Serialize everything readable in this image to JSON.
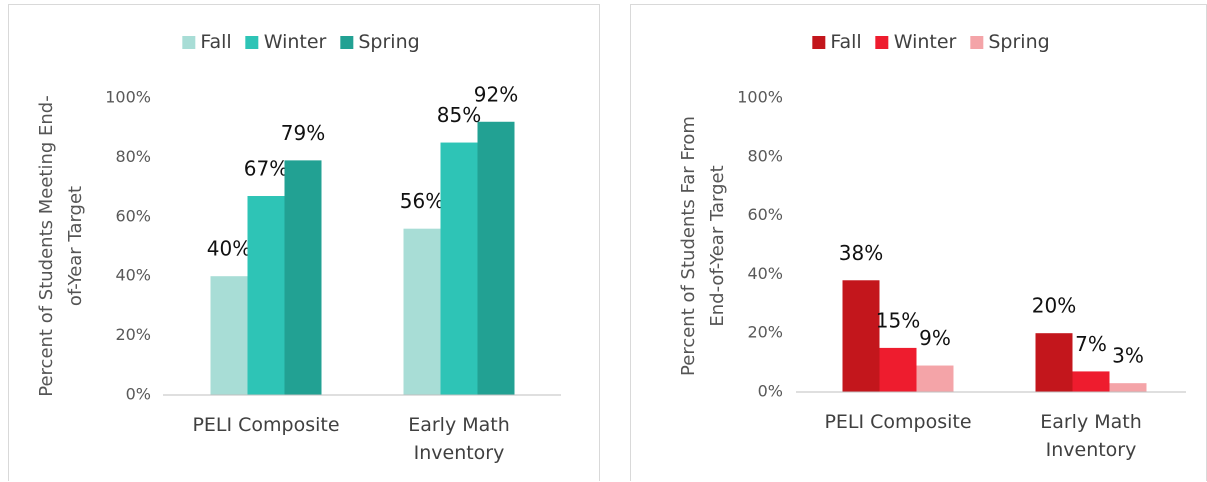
{
  "chart_data": [
    {
      "type": "bar",
      "y_axis_label": "Percent of Students Meeting End-of-Year Target",
      "categories": [
        "PELI Composite",
        "Early Math Inventory"
      ],
      "series": [
        {
          "name": "Fall",
          "color": "#a8ddd6",
          "values": [
            40,
            56
          ],
          "value_labels": [
            "40%",
            "56%"
          ]
        },
        {
          "name": "Winter",
          "color": "#2ec4b6",
          "values": [
            67,
            85
          ],
          "value_labels": [
            "67%",
            "85%"
          ]
        },
        {
          "name": "Spring",
          "color": "#22a193",
          "values": [
            79,
            92
          ],
          "value_labels": [
            "79%",
            "92%"
          ]
        }
      ],
      "ylim": [
        0,
        100
      ],
      "yticks": [
        {
          "value": 0,
          "label": "0%"
        },
        {
          "value": 20,
          "label": "20%"
        },
        {
          "value": 40,
          "label": "40%"
        },
        {
          "value": 60,
          "label": "60%"
        },
        {
          "value": 80,
          "label": "80%"
        },
        {
          "value": 100,
          "label": "100%"
        }
      ],
      "legend": "top"
    },
    {
      "type": "bar",
      "y_axis_label": "Percent of Students Far From End-of-Year Target",
      "categories": [
        "PELI Composite",
        "Early Math Inventory"
      ],
      "series": [
        {
          "name": "Fall",
          "color": "#c3161c",
          "values": [
            38,
            20
          ],
          "value_labels": [
            "38%",
            "20%"
          ]
        },
        {
          "name": "Winter",
          "color": "#ee1c2e",
          "values": [
            15,
            7
          ],
          "value_labels": [
            "15%",
            "7%"
          ]
        },
        {
          "name": "Spring",
          "color": "#f4a4a8",
          "values": [
            9,
            3
          ],
          "value_labels": [
            "9%",
            "3%"
          ]
        }
      ],
      "ylim": [
        0,
        100
      ],
      "yticks": [
        {
          "value": 0,
          "label": "0%"
        },
        {
          "value": 20,
          "label": "20%"
        },
        {
          "value": 40,
          "label": "40%"
        },
        {
          "value": 60,
          "label": "60%"
        },
        {
          "value": 80,
          "label": "80%"
        },
        {
          "value": 100,
          "label": "100%"
        }
      ],
      "legend": "top"
    }
  ]
}
